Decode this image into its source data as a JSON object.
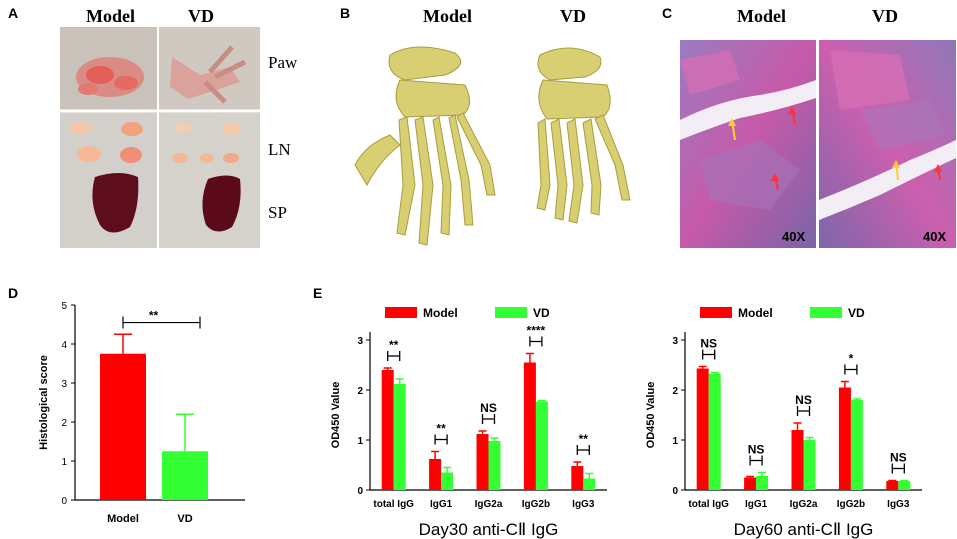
{
  "panels": {
    "a": {
      "letter": "A",
      "col_model": "Model",
      "col_vd": "VD",
      "row_labels": [
        "Paw",
        "LN",
        "SP"
      ]
    },
    "b": {
      "letter": "B",
      "col_model": "Model",
      "col_vd": "VD"
    },
    "c": {
      "letter": "C",
      "col_model": "Model",
      "col_vd": "VD",
      "mag_model": "40X",
      "mag_vd": "40X"
    },
    "d": {
      "letter": "D"
    },
    "e": {
      "letter": "E"
    }
  },
  "colors": {
    "model": "#ff0000",
    "vd": "#33ff33",
    "photo_bg": "#cfcac4",
    "bone": "#d8cf72",
    "he_pink": "#c65aa8",
    "he_purple": "#7a64a8"
  },
  "chart_data": [
    {
      "id": "D",
      "type": "bar",
      "ylabel": "Histological score",
      "categories": [
        "Model",
        "VD"
      ],
      "values": [
        3.75,
        1.25
      ],
      "errors": [
        0.5,
        0.95
      ],
      "bar_colors": [
        "#ff0000",
        "#33ff33"
      ],
      "ylim": [
        0,
        5
      ],
      "yticks": [
        0,
        1,
        2,
        3,
        4,
        5
      ],
      "significance": "**"
    },
    {
      "id": "E1",
      "type": "bar",
      "ylabel": "OD450 Value",
      "xlabel": "Day30 anti-CⅡ IgG",
      "categories": [
        "total IgG",
        "IgG1",
        "IgG2a",
        "IgG2b",
        "IgG3"
      ],
      "series": [
        {
          "name": "Model",
          "values": [
            2.4,
            0.62,
            1.12,
            2.55,
            0.48
          ],
          "errors": [
            0.04,
            0.15,
            0.06,
            0.18,
            0.08
          ]
        },
        {
          "name": "VD",
          "values": [
            2.12,
            0.35,
            0.98,
            1.77,
            0.23
          ],
          "errors": [
            0.1,
            0.1,
            0.06,
            0.02,
            0.1
          ]
        }
      ],
      "significance": [
        "**",
        "**",
        "NS",
        "****",
        "**"
      ],
      "ylim": [
        0,
        3
      ],
      "yticks": [
        0,
        1,
        2,
        3
      ],
      "legend_position": "top"
    },
    {
      "id": "E2",
      "type": "bar",
      "ylabel": "OD450 Value",
      "xlabel": "Day60 anti-CⅡ IgG",
      "categories": [
        "total IgG",
        "IgG1",
        "IgG2a",
        "IgG2b",
        "IgG3"
      ],
      "series": [
        {
          "name": "Model",
          "values": [
            2.43,
            0.25,
            1.2,
            2.05,
            0.18
          ],
          "errors": [
            0.04,
            0.02,
            0.14,
            0.12,
            0.01
          ]
        },
        {
          "name": "VD",
          "values": [
            2.33,
            0.28,
            1.0,
            1.8,
            0.18
          ],
          "errors": [
            0.02,
            0.07,
            0.05,
            0.02,
            0.01
          ]
        }
      ],
      "significance": [
        "NS",
        "NS",
        "NS",
        "*",
        "NS"
      ],
      "ylim": [
        0,
        3
      ],
      "yticks": [
        0,
        1,
        2,
        3
      ],
      "legend_position": "top"
    }
  ]
}
